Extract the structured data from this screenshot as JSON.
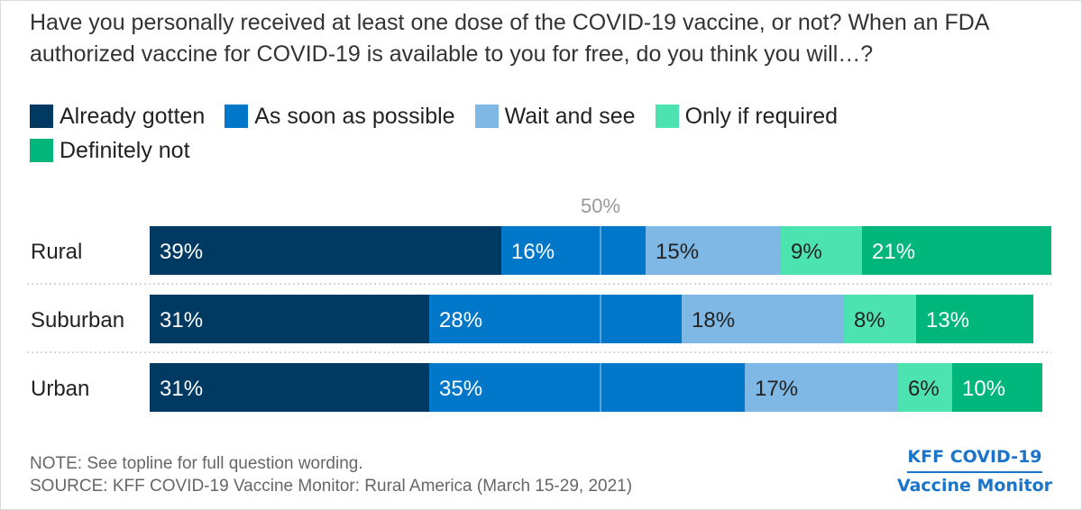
{
  "title": "Have you personally received at least one dose of the COVID-19 vaccine, or not? When an FDA authorized vaccine for COVID-19 is available to you for free, do you think you will…?",
  "legend": [
    {
      "label": "Already gotten",
      "color": "#003a63"
    },
    {
      "label": "As soon as possible",
      "color": "#0077c8"
    },
    {
      "label": "Wait and see",
      "color": "#7fb8e4"
    },
    {
      "label": "Only if required",
      "color": "#4de3b0"
    },
    {
      "label": "Definitely not",
      "color": "#00b67a"
    }
  ],
  "chart_data": {
    "type": "bar",
    "orientation": "horizontal",
    "stacked": true,
    "categories": [
      "Rural",
      "Suburban",
      "Urban"
    ],
    "series": [
      {
        "name": "Already gotten",
        "values": [
          39,
          31,
          31
        ],
        "labels": [
          "39%",
          "31%",
          "31%"
        ],
        "color": "#003a63",
        "label_color": "#ffffff"
      },
      {
        "name": "As soon as possible",
        "values": [
          16,
          28,
          35
        ],
        "labels": [
          "16%",
          "28%",
          "35%"
        ],
        "color": "#0077c8",
        "label_color": "#ffffff"
      },
      {
        "name": "Wait and see",
        "values": [
          15,
          18,
          17
        ],
        "labels": [
          "15%",
          "18%",
          "17%"
        ],
        "color": "#7fb8e4",
        "label_color": "#222222"
      },
      {
        "name": "Only if required",
        "values": [
          9,
          8,
          6
        ],
        "labels": [
          "9%",
          "8%",
          "6%"
        ],
        "color": "#4de3b0",
        "label_color": "#222222"
      },
      {
        "name": "Definitely not",
        "values": [
          21,
          13,
          10
        ],
        "labels": [
          "21%",
          "13%",
          "10%"
        ],
        "color": "#00b67a",
        "label_color": "#ffffff"
      }
    ],
    "reference_line": {
      "value": 50,
      "label": "50%"
    },
    "xlim": [
      0,
      100
    ],
    "legend_position": "top-left",
    "grid": false
  },
  "note": "NOTE: See topline for full question wording.",
  "source": "SOURCE: KFF COVID-19 Vaccine Monitor: Rural America (March 15-29, 2021)",
  "logo": {
    "line1": "KFF COVID-19",
    "line2": "Vaccine Monitor"
  }
}
